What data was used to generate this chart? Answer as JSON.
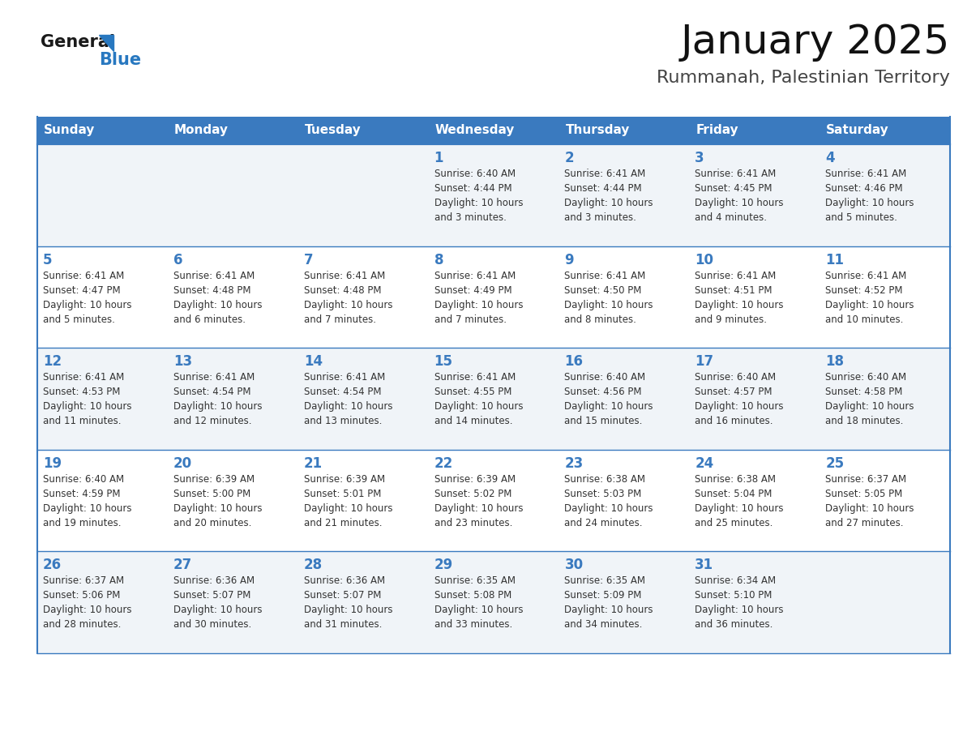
{
  "title": "January 2025",
  "subtitle": "Rummanah, Palestinian Territory",
  "days_of_week": [
    "Sunday",
    "Monday",
    "Tuesday",
    "Wednesday",
    "Thursday",
    "Friday",
    "Saturday"
  ],
  "header_bg": "#3a7abf",
  "header_text": "#ffffff",
  "cell_bg_odd": "#f0f4f8",
  "cell_bg_even": "#ffffff",
  "border_color": "#3a7abf",
  "day_number_color": "#3a7abf",
  "text_color": "#333333",
  "logo_general_color": "#1a1a1a",
  "logo_blue_color": "#2878c0",
  "weeks": [
    [
      {
        "day": null,
        "info": null
      },
      {
        "day": null,
        "info": null
      },
      {
        "day": null,
        "info": null
      },
      {
        "day": 1,
        "info": "Sunrise: 6:40 AM\nSunset: 4:44 PM\nDaylight: 10 hours\nand 3 minutes."
      },
      {
        "day": 2,
        "info": "Sunrise: 6:41 AM\nSunset: 4:44 PM\nDaylight: 10 hours\nand 3 minutes."
      },
      {
        "day": 3,
        "info": "Sunrise: 6:41 AM\nSunset: 4:45 PM\nDaylight: 10 hours\nand 4 minutes."
      },
      {
        "day": 4,
        "info": "Sunrise: 6:41 AM\nSunset: 4:46 PM\nDaylight: 10 hours\nand 5 minutes."
      }
    ],
    [
      {
        "day": 5,
        "info": "Sunrise: 6:41 AM\nSunset: 4:47 PM\nDaylight: 10 hours\nand 5 minutes."
      },
      {
        "day": 6,
        "info": "Sunrise: 6:41 AM\nSunset: 4:48 PM\nDaylight: 10 hours\nand 6 minutes."
      },
      {
        "day": 7,
        "info": "Sunrise: 6:41 AM\nSunset: 4:48 PM\nDaylight: 10 hours\nand 7 minutes."
      },
      {
        "day": 8,
        "info": "Sunrise: 6:41 AM\nSunset: 4:49 PM\nDaylight: 10 hours\nand 7 minutes."
      },
      {
        "day": 9,
        "info": "Sunrise: 6:41 AM\nSunset: 4:50 PM\nDaylight: 10 hours\nand 8 minutes."
      },
      {
        "day": 10,
        "info": "Sunrise: 6:41 AM\nSunset: 4:51 PM\nDaylight: 10 hours\nand 9 minutes."
      },
      {
        "day": 11,
        "info": "Sunrise: 6:41 AM\nSunset: 4:52 PM\nDaylight: 10 hours\nand 10 minutes."
      }
    ],
    [
      {
        "day": 12,
        "info": "Sunrise: 6:41 AM\nSunset: 4:53 PM\nDaylight: 10 hours\nand 11 minutes."
      },
      {
        "day": 13,
        "info": "Sunrise: 6:41 AM\nSunset: 4:54 PM\nDaylight: 10 hours\nand 12 minutes."
      },
      {
        "day": 14,
        "info": "Sunrise: 6:41 AM\nSunset: 4:54 PM\nDaylight: 10 hours\nand 13 minutes."
      },
      {
        "day": 15,
        "info": "Sunrise: 6:41 AM\nSunset: 4:55 PM\nDaylight: 10 hours\nand 14 minutes."
      },
      {
        "day": 16,
        "info": "Sunrise: 6:40 AM\nSunset: 4:56 PM\nDaylight: 10 hours\nand 15 minutes."
      },
      {
        "day": 17,
        "info": "Sunrise: 6:40 AM\nSunset: 4:57 PM\nDaylight: 10 hours\nand 16 minutes."
      },
      {
        "day": 18,
        "info": "Sunrise: 6:40 AM\nSunset: 4:58 PM\nDaylight: 10 hours\nand 18 minutes."
      }
    ],
    [
      {
        "day": 19,
        "info": "Sunrise: 6:40 AM\nSunset: 4:59 PM\nDaylight: 10 hours\nand 19 minutes."
      },
      {
        "day": 20,
        "info": "Sunrise: 6:39 AM\nSunset: 5:00 PM\nDaylight: 10 hours\nand 20 minutes."
      },
      {
        "day": 21,
        "info": "Sunrise: 6:39 AM\nSunset: 5:01 PM\nDaylight: 10 hours\nand 21 minutes."
      },
      {
        "day": 22,
        "info": "Sunrise: 6:39 AM\nSunset: 5:02 PM\nDaylight: 10 hours\nand 23 minutes."
      },
      {
        "day": 23,
        "info": "Sunrise: 6:38 AM\nSunset: 5:03 PM\nDaylight: 10 hours\nand 24 minutes."
      },
      {
        "day": 24,
        "info": "Sunrise: 6:38 AM\nSunset: 5:04 PM\nDaylight: 10 hours\nand 25 minutes."
      },
      {
        "day": 25,
        "info": "Sunrise: 6:37 AM\nSunset: 5:05 PM\nDaylight: 10 hours\nand 27 minutes."
      }
    ],
    [
      {
        "day": 26,
        "info": "Sunrise: 6:37 AM\nSunset: 5:06 PM\nDaylight: 10 hours\nand 28 minutes."
      },
      {
        "day": 27,
        "info": "Sunrise: 6:36 AM\nSunset: 5:07 PM\nDaylight: 10 hours\nand 30 minutes."
      },
      {
        "day": 28,
        "info": "Sunrise: 6:36 AM\nSunset: 5:07 PM\nDaylight: 10 hours\nand 31 minutes."
      },
      {
        "day": 29,
        "info": "Sunrise: 6:35 AM\nSunset: 5:08 PM\nDaylight: 10 hours\nand 33 minutes."
      },
      {
        "day": 30,
        "info": "Sunrise: 6:35 AM\nSunset: 5:09 PM\nDaylight: 10 hours\nand 34 minutes."
      },
      {
        "day": 31,
        "info": "Sunrise: 6:34 AM\nSunset: 5:10 PM\nDaylight: 10 hours\nand 36 minutes."
      },
      {
        "day": null,
        "info": null
      }
    ]
  ]
}
